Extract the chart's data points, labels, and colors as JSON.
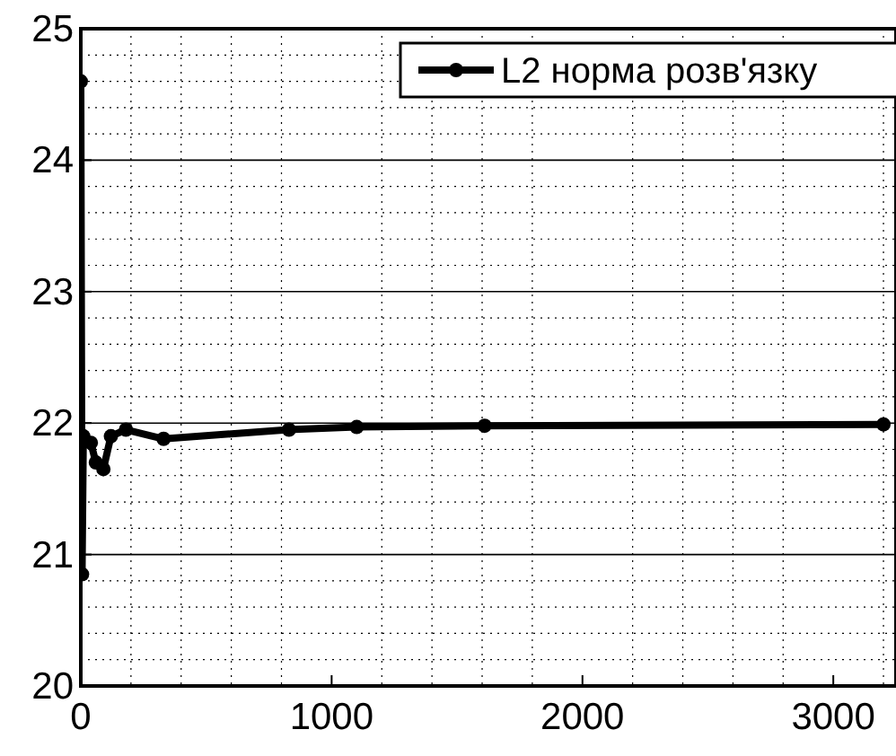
{
  "chart_data": {
    "type": "line",
    "xlim": [
      0,
      3250
    ],
    "xticks": [
      0,
      1000,
      2000,
      3000
    ],
    "ylim": [
      20,
      25
    ],
    "yticks": [
      20,
      21,
      22,
      23,
      24,
      25
    ],
    "grid": "y",
    "legend": "top right",
    "marker": "circle",
    "line_style": "solid",
    "series": [
      {
        "name": "L2 норма розв'язку",
        "color": "#000000",
        "x": [
          0,
          5,
          10,
          20,
          40,
          60,
          90,
          120,
          180,
          330,
          830,
          1100,
          1610,
          3200
        ],
        "values": [
          24.6,
          20.85,
          21.9,
          null,
          21.85,
          21.7,
          21.65,
          21.9,
          21.95,
          21.88,
          21.95,
          21.97,
          21.98,
          21.99
        ]
      }
    ]
  }
}
